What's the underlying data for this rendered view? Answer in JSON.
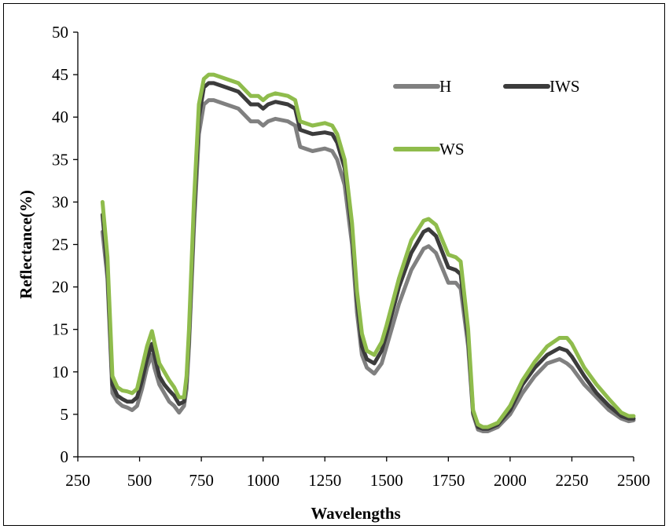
{
  "chart_data": {
    "type": "line",
    "title": "",
    "xlabel": "Wavelengths",
    "ylabel": "Reflectance(%)",
    "xlim": [
      250,
      2500
    ],
    "ylim": [
      0,
      50
    ],
    "xticks": [
      250,
      500,
      750,
      1000,
      1250,
      1500,
      1750,
      2000,
      2250,
      2500
    ],
    "yticks": [
      0,
      5,
      10,
      15,
      20,
      25,
      30,
      35,
      40,
      45,
      50
    ],
    "grid": false,
    "legend_position": "top-right",
    "series": [
      {
        "name": "H",
        "color": "#808080",
        "x": [
          350,
          370,
          390,
          410,
          430,
          450,
          470,
          490,
          510,
          530,
          550,
          560,
          580,
          600,
          620,
          640,
          660,
          680,
          690,
          700,
          720,
          740,
          760,
          780,
          800,
          850,
          900,
          950,
          980,
          1000,
          1020,
          1050,
          1100,
          1130,
          1150,
          1200,
          1250,
          1280,
          1300,
          1330,
          1360,
          1380,
          1400,
          1420,
          1450,
          1480,
          1500,
          1550,
          1600,
          1650,
          1670,
          1700,
          1750,
          1780,
          1800,
          1830,
          1850,
          1870,
          1890,
          1910,
          1950,
          2000,
          2050,
          2100,
          2150,
          2200,
          2230,
          2250,
          2300,
          2350,
          2400,
          2450,
          2480,
          2500
        ],
        "values": [
          26.5,
          21,
          7.5,
          6.5,
          6,
          5.8,
          5.5,
          6,
          8,
          10.5,
          12,
          10.5,
          8.5,
          7.5,
          6.5,
          6,
          5.2,
          6,
          8,
          13,
          27,
          38,
          41.5,
          42,
          42,
          41.5,
          41,
          39.5,
          39.5,
          39,
          39.5,
          39.8,
          39.5,
          39,
          36.5,
          36,
          36.3,
          36,
          35,
          32,
          25,
          17,
          12,
          10.5,
          9.8,
          11,
          13,
          18,
          22,
          24.5,
          24.8,
          24,
          20.5,
          20.5,
          19.8,
          13,
          5,
          3.2,
          3,
          3,
          3.5,
          5,
          7.5,
          9.5,
          11,
          11.5,
          11,
          10.5,
          8.5,
          7,
          5.5,
          4.5,
          4.2,
          4.3
        ]
      },
      {
        "name": "IWS",
        "color": "#3c3c3c",
        "x": [
          350,
          370,
          390,
          410,
          430,
          450,
          470,
          490,
          510,
          530,
          550,
          560,
          580,
          600,
          620,
          640,
          660,
          680,
          690,
          700,
          720,
          740,
          760,
          780,
          800,
          850,
          900,
          950,
          980,
          1000,
          1020,
          1050,
          1100,
          1130,
          1150,
          1200,
          1250,
          1280,
          1300,
          1330,
          1360,
          1380,
          1400,
          1420,
          1450,
          1480,
          1500,
          1550,
          1600,
          1650,
          1670,
          1700,
          1750,
          1780,
          1800,
          1830,
          1850,
          1870,
          1890,
          1910,
          1950,
          2000,
          2050,
          2100,
          2150,
          2200,
          2230,
          2250,
          2300,
          2350,
          2400,
          2450,
          2480,
          2500
        ],
        "values": [
          28.5,
          22,
          8.5,
          7.2,
          6.8,
          6.5,
          6.5,
          7,
          9,
          11.5,
          13.3,
          12,
          9.5,
          8.5,
          7.8,
          7.2,
          6.2,
          6.5,
          9,
          14,
          28.5,
          40,
          43.5,
          44,
          44,
          43.5,
          43,
          41.5,
          41.5,
          41,
          41.5,
          41.8,
          41.5,
          41,
          38.5,
          38,
          38.2,
          38,
          37,
          34,
          26.5,
          18.5,
          13,
          11.5,
          11,
          12.5,
          14.5,
          20,
          24,
          26.5,
          26.8,
          26,
          22.3,
          22,
          21.5,
          14,
          5.2,
          3.5,
          3.3,
          3.3,
          3.8,
          5.5,
          8.5,
          10.5,
          12,
          12.8,
          12.5,
          11.8,
          9.5,
          7.5,
          6,
          4.8,
          4.5,
          4.5
        ]
      },
      {
        "name": "WS",
        "color": "#8fbc4c",
        "x": [
          350,
          370,
          390,
          410,
          430,
          450,
          470,
          490,
          510,
          530,
          550,
          560,
          580,
          600,
          620,
          640,
          660,
          680,
          690,
          700,
          720,
          740,
          760,
          780,
          800,
          850,
          900,
          950,
          980,
          1000,
          1020,
          1050,
          1100,
          1130,
          1150,
          1200,
          1250,
          1280,
          1300,
          1330,
          1360,
          1380,
          1400,
          1420,
          1450,
          1480,
          1500,
          1550,
          1600,
          1650,
          1670,
          1700,
          1750,
          1780,
          1800,
          1830,
          1850,
          1870,
          1890,
          1910,
          1950,
          2000,
          2050,
          2100,
          2150,
          2200,
          2230,
          2250,
          2300,
          2350,
          2400,
          2450,
          2480,
          2500
        ],
        "values": [
          30,
          23.5,
          9.5,
          8.2,
          7.8,
          7.7,
          7.5,
          8,
          10.5,
          13,
          14.8,
          13.5,
          11,
          10,
          9,
          8.2,
          7,
          7,
          9.5,
          15,
          30,
          41.5,
          44.5,
          45,
          45,
          44.5,
          44,
          42.5,
          42.5,
          42,
          42.5,
          42.8,
          42.5,
          42,
          39.5,
          39,
          39.3,
          39,
          38,
          35,
          27.5,
          19.5,
          14.5,
          12.5,
          12,
          13.5,
          15.5,
          21,
          25.5,
          27.8,
          28,
          27.3,
          23.8,
          23.5,
          23,
          15,
          5.5,
          3.8,
          3.5,
          3.5,
          4,
          6,
          9,
          11.2,
          13,
          14,
          14,
          13.3,
          10.5,
          8.5,
          6.8,
          5.2,
          4.8,
          4.8
        ]
      }
    ]
  }
}
